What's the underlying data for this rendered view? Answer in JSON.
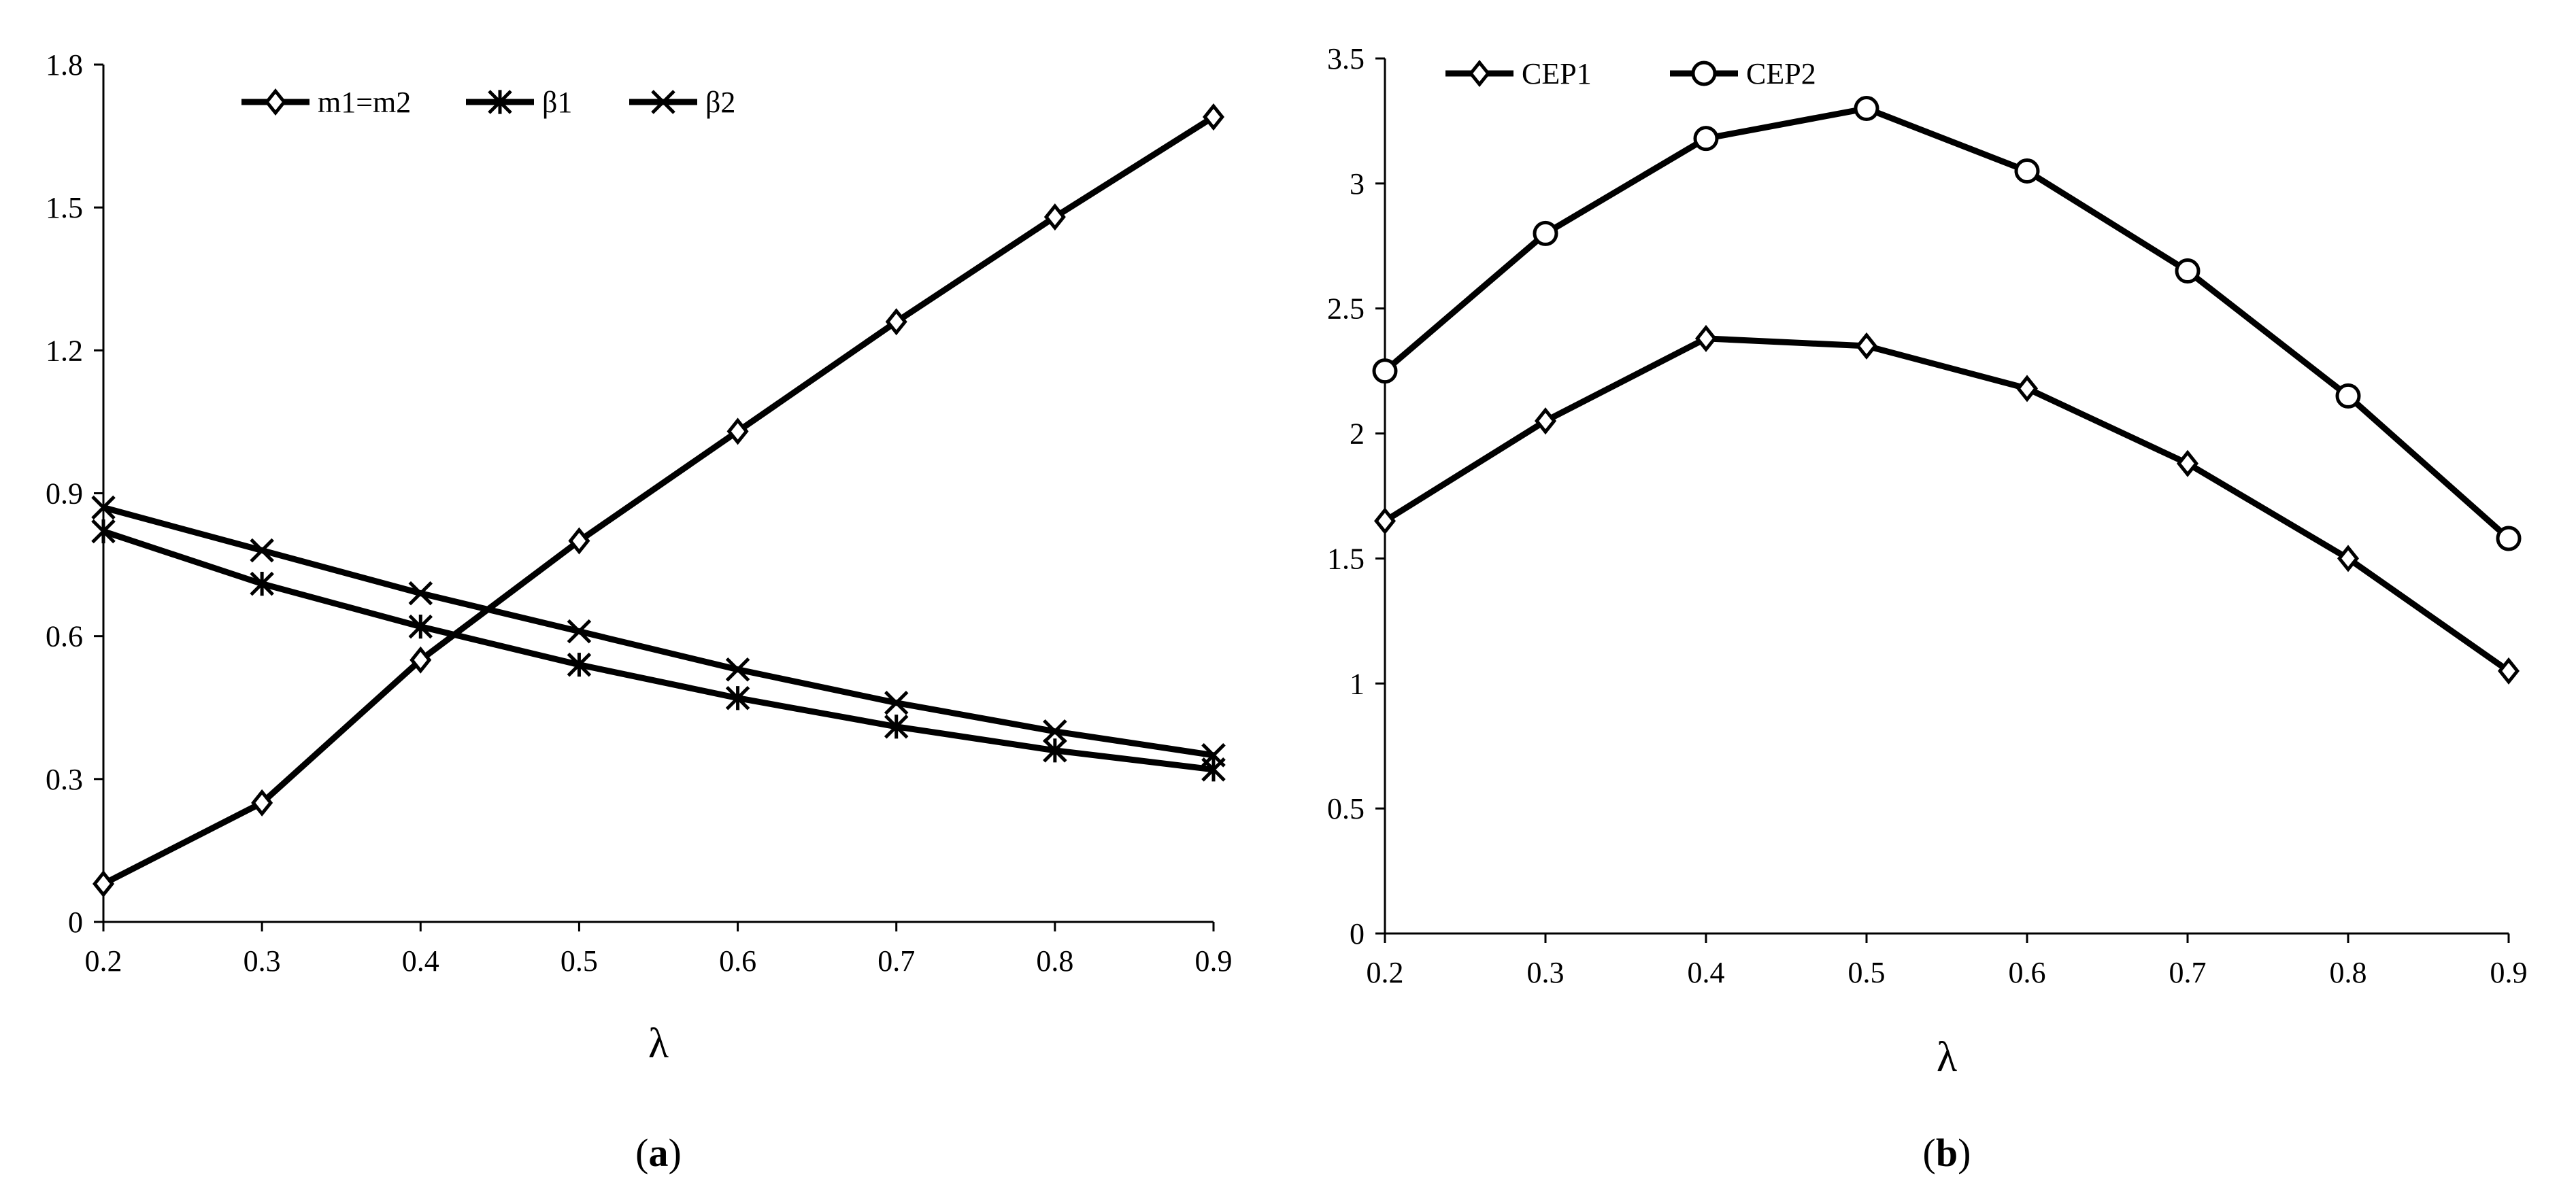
{
  "chart_data": [
    {
      "type": "line",
      "panel_label_open": "(",
      "panel_label_letter": "a",
      "panel_label_close": ")",
      "xlabel": "λ",
      "ylabel": "",
      "x": [
        0.2,
        0.3,
        0.4,
        0.5,
        0.6,
        0.7,
        0.8,
        0.9
      ],
      "x_tick_labels": [
        "0.2",
        "0.3",
        "0.4",
        "0.5",
        "0.6",
        "0.7",
        "0.8",
        "0.9"
      ],
      "xlim": [
        0.2,
        0.9
      ],
      "ylim": [
        0,
        1.8
      ],
      "y_ticks": [
        0,
        0.3,
        0.6,
        0.9,
        1.2,
        1.5,
        1.8
      ],
      "y_tick_labels": [
        "0",
        "0.3",
        "0.6",
        "0.9",
        "1.2",
        "1.5",
        "1.8"
      ],
      "grid": false,
      "legend_position": "top-center",
      "series": [
        {
          "name": "m1=m2",
          "marker": "diamond",
          "values": [
            0.08,
            0.25,
            0.55,
            0.8,
            1.03,
            1.26,
            1.48,
            1.69
          ]
        },
        {
          "name": "β1",
          "marker": "asterisk",
          "values": [
            0.82,
            0.71,
            0.62,
            0.54,
            0.47,
            0.41,
            0.36,
            0.32
          ]
        },
        {
          "name": "β2",
          "marker": "x",
          "values": [
            0.87,
            0.78,
            0.69,
            0.61,
            0.53,
            0.46,
            0.4,
            0.35
          ]
        }
      ]
    },
    {
      "type": "line",
      "panel_label_open": "(",
      "panel_label_letter": "b",
      "panel_label_close": ")",
      "xlabel": "λ",
      "ylabel": "",
      "x": [
        0.2,
        0.3,
        0.4,
        0.5,
        0.6,
        0.7,
        0.8,
        0.9
      ],
      "x_tick_labels": [
        "0.2",
        "0.3",
        "0.4",
        "0.5",
        "0.6",
        "0.7",
        "0.8",
        "0.9"
      ],
      "xlim": [
        0.2,
        0.9
      ],
      "ylim": [
        0,
        3.5
      ],
      "y_ticks": [
        0,
        0.5,
        1,
        1.5,
        2,
        2.5,
        3,
        3.5
      ],
      "y_tick_labels": [
        "0",
        "0.5",
        "1",
        "1.5",
        "2",
        "2.5",
        "3",
        "3.5"
      ],
      "grid": false,
      "legend_position": "top-left",
      "series": [
        {
          "name": "CEP1",
          "marker": "diamond",
          "values": [
            1.65,
            2.05,
            2.38,
            2.35,
            2.18,
            1.88,
            1.5,
            1.05
          ]
        },
        {
          "name": "CEP2",
          "marker": "circle",
          "values": [
            2.25,
            2.8,
            3.18,
            3.3,
            3.05,
            2.65,
            2.15,
            1.58
          ]
        }
      ]
    }
  ]
}
